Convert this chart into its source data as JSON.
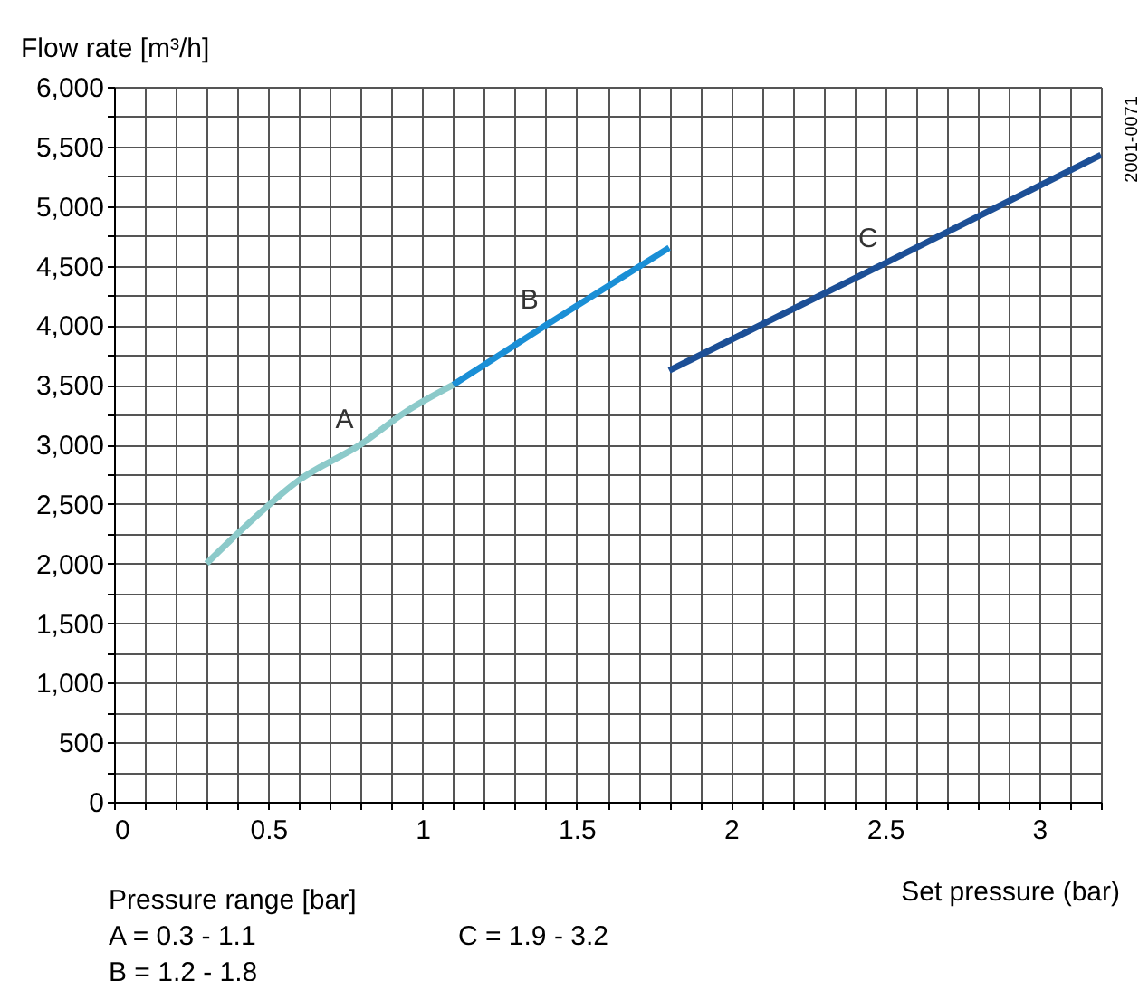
{
  "chart_data": {
    "type": "line",
    "ylabel": "Flow rate [m³/h]",
    "xlabel": "Set pressure (bar)",
    "series": [
      {
        "name": "A",
        "color": "#8ccaca",
        "x": [
          0.3,
          0.4,
          0.6,
          0.8,
          0.95,
          1.1
        ],
        "values": [
          2000,
          2250,
          2700,
          3000,
          3280,
          3500
        ]
      },
      {
        "name": "B",
        "color": "#1a8fd6",
        "x": [
          1.1,
          1.4,
          1.8
        ],
        "values": [
          3500,
          4000,
          4650
        ]
      },
      {
        "name": "C",
        "color": "#1c4f96",
        "x": [
          1.8,
          2.5,
          3.2
        ],
        "values": [
          3620,
          4520,
          5430
        ]
      }
    ],
    "annotations": [
      "Pressure range [bar]",
      "A = 0.3 - 1.1",
      "B = 1.2 - 1.8",
      "C = 1.9 - 3.2",
      "2001-0071"
    ],
    "xlim": [
      0,
      3.2
    ],
    "ylim": [
      0,
      6000
    ],
    "xticks": [
      0,
      {
        "value": 0.1,
        "label": null
      },
      {
        "value": 0.2,
        "label": null
      },
      {
        "value": 0.3,
        "label": null
      },
      {
        "value": 0.4,
        "label": null
      },
      0.5,
      {
        "value": 0.6,
        "label": null
      },
      {
        "value": 0.7,
        "label": null
      },
      {
        "value": 0.8,
        "label": null
      },
      {
        "value": 0.9,
        "label": null
      },
      1,
      {
        "value": 1.1,
        "label": null
      },
      {
        "value": 1.2,
        "label": null
      },
      {
        "value": 1.3,
        "label": null
      },
      {
        "value": 1.4,
        "label": null
      },
      1.5,
      {
        "value": 1.6,
        "label": null
      },
      {
        "value": 1.7,
        "label": null
      },
      {
        "value": 1.8,
        "label": null
      },
      {
        "value": 1.9,
        "label": null
      },
      2,
      {
        "value": 2.1,
        "label": null
      },
      {
        "value": 2.2,
        "label": null
      },
      {
        "value": 2.3,
        "label": null
      },
      {
        "value": 2.4,
        "label": null
      },
      2.5,
      {
        "value": 2.6,
        "label": null
      },
      {
        "value": 2.7,
        "label": null
      },
      {
        "value": 2.8,
        "label": null
      },
      {
        "value": 2.9,
        "label": null
      },
      3,
      {
        "value": 3.1,
        "label": null
      },
      {
        "value": 3.2,
        "label": null
      }
    ],
    "yticks": [
      0,
      {
        "value": 250,
        "label": null
      },
      500,
      {
        "value": 750,
        "label": null
      },
      {
        "value": 1000,
        "label": "1,000"
      },
      {
        "value": 1250,
        "label": null
      },
      {
        "value": 1500,
        "label": "1,500"
      },
      {
        "value": 1750,
        "label": null
      },
      {
        "value": 2000,
        "label": "2,000"
      },
      {
        "value": 2250,
        "label": null
      },
      {
        "value": 2500,
        "label": "2,500"
      },
      {
        "value": 2750,
        "label": null
      },
      {
        "value": 3000,
        "label": "3,000"
      },
      {
        "value": 3250,
        "label": null
      },
      {
        "value": 3500,
        "label": "3,500"
      },
      {
        "value": 3750,
        "label": null
      },
      {
        "value": 4000,
        "label": "4,000"
      },
      {
        "value": 4250,
        "label": null
      },
      {
        "value": 4500,
        "label": "4,500"
      },
      {
        "value": 4750,
        "label": null
      },
      {
        "value": 5000,
        "label": "5,000"
      },
      {
        "value": 5250,
        "label": null
      },
      {
        "value": 5500,
        "label": "5,500"
      },
      {
        "value": 5750,
        "label": null
      },
      {
        "value": 6000,
        "label": "6,000"
      }
    ],
    "grid": true,
    "legend": false,
    "marker": "none",
    "line_style": "solid"
  }
}
